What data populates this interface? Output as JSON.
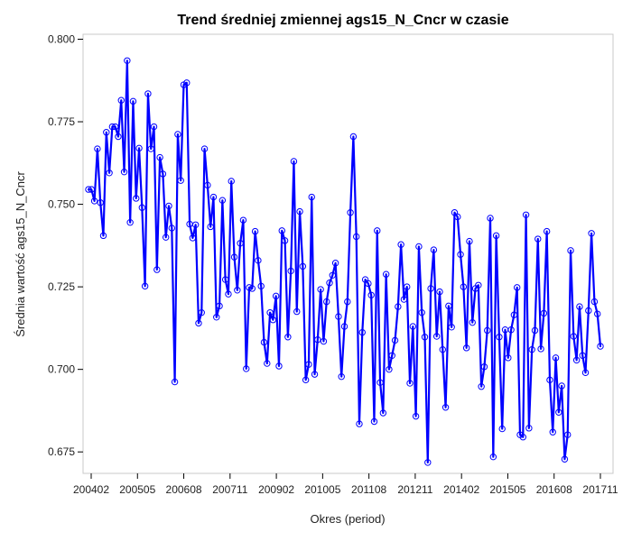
{
  "chart_data": {
    "type": "line",
    "title": "Trend średniej zmiennej ags15_N_Cncr w czasie",
    "xlabel": "Okres (period)",
    "ylabel": "Średnia wartość ags15_N_Cncr",
    "x_ticks": [
      "200402",
      "200505",
      "200608",
      "200711",
      "200902",
      "201005",
      "201108",
      "201211",
      "201402",
      "201505",
      "201608",
      "201711"
    ],
    "y_ticks": [
      "0.675",
      "0.700",
      "0.725",
      "0.750",
      "0.775",
      "0.800"
    ],
    "ylim": [
      0.6685,
      0.8015
    ],
    "grid": false,
    "legend": "none",
    "colors": {
      "series": "#0000ff",
      "frame": "#c8c8c8"
    },
    "series": [
      {
        "values": [
          0.7545,
          0.7545,
          0.751,
          0.7668,
          0.7505,
          0.7405,
          0.7718,
          0.7595,
          0.7735,
          0.7735,
          0.7705,
          0.7815,
          0.7598,
          0.7935,
          0.7445,
          0.7812,
          0.7518,
          0.767,
          0.749,
          0.7252,
          0.7835,
          0.7668,
          0.7735,
          0.7302,
          0.7642,
          0.7592,
          0.74,
          0.7495,
          0.7428,
          0.6962,
          0.7712,
          0.7572,
          0.7862,
          0.7868,
          0.744,
          0.7398,
          0.7438,
          0.714,
          0.7172,
          0.7668,
          0.7558,
          0.7432,
          0.7522,
          0.7158,
          0.7192,
          0.7512,
          0.7272,
          0.7228,
          0.757,
          0.734,
          0.724,
          0.7382,
          0.7452,
          0.7002,
          0.7248,
          0.7245,
          0.7418,
          0.733,
          0.7252,
          0.7082,
          0.7018,
          0.7172,
          0.715,
          0.7222,
          0.701,
          0.742,
          0.739,
          0.7098,
          0.7298,
          0.763,
          0.7175,
          0.7478,
          0.7312,
          0.6968,
          0.7015,
          0.7522,
          0.6985,
          0.709,
          0.7242,
          0.7085,
          0.7205,
          0.7262,
          0.7285,
          0.7322,
          0.716,
          0.6978,
          0.713,
          0.7205,
          0.7475,
          0.7705,
          0.7402,
          0.6835,
          0.7112,
          0.7272,
          0.726,
          0.7225,
          0.6842,
          0.742,
          0.696,
          0.6868,
          0.7288,
          0.7,
          0.7042,
          0.7088,
          0.719,
          0.7378,
          0.7212,
          0.725,
          0.6958,
          0.713,
          0.6858,
          0.7372,
          0.7172,
          0.7098,
          0.6718,
          0.7245,
          0.7362,
          0.71,
          0.7235,
          0.706,
          0.6885,
          0.7192,
          0.7128,
          0.7475,
          0.7462,
          0.7348,
          0.725,
          0.7065,
          0.7388,
          0.7142,
          0.7245,
          0.7255,
          0.6948,
          0.7008,
          0.7118,
          0.7458,
          0.6735,
          0.7405,
          0.7098,
          0.682,
          0.712,
          0.7035,
          0.712,
          0.7165,
          0.7248,
          0.6802,
          0.6795,
          0.7468,
          0.6822,
          0.706,
          0.7118,
          0.7395,
          0.7062,
          0.717,
          0.7418,
          0.6968,
          0.681,
          0.7035,
          0.687,
          0.695,
          0.6728,
          0.6802,
          0.736,
          0.71,
          0.7028,
          0.719,
          0.7042,
          0.699,
          0.7178,
          0.7412,
          0.7205,
          0.7168,
          0.707
        ]
      }
    ]
  }
}
